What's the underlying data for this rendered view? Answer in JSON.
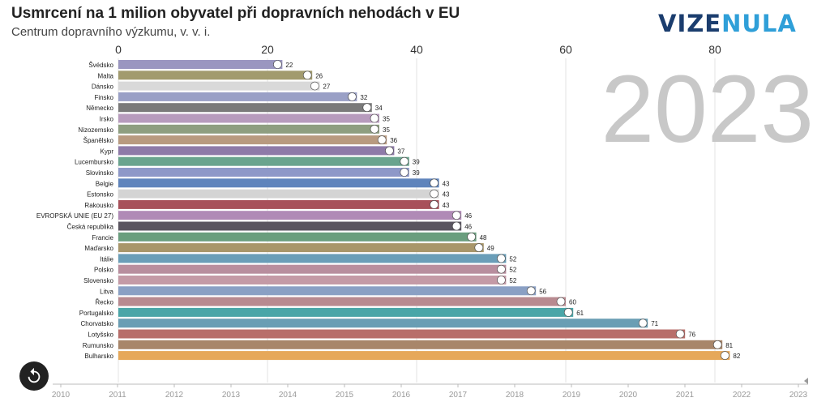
{
  "header": {
    "title": "Usmrcení na 1 milion obyvatel při dopravních nehodách v EU",
    "subtitle": "Centrum dopravního výzkumu, v. v. i.",
    "logo_left": "VIZE",
    "logo_right": "NULA"
  },
  "year_display": "2023",
  "replay_icon": "replay-icon",
  "chart_data": {
    "type": "bar",
    "orientation": "horizontal",
    "xlim": [
      0,
      92
    ],
    "x_ticks": [
      "0",
      "20",
      "40",
      "60",
      "80"
    ],
    "x_tick_values": [
      0,
      20,
      40,
      60,
      80
    ],
    "timeline": {
      "years": [
        "2010",
        "2011",
        "2012",
        "2013",
        "2014",
        "2015",
        "2016",
        "2017",
        "2018",
        "2019",
        "2020",
        "2021",
        "2022",
        "2023"
      ],
      "current": "2023"
    },
    "categories": [
      "Švédsko",
      "Malta",
      "Dánsko",
      "Finsko",
      "Německo",
      "Irsko",
      "Nizozemsko",
      "Španělsko",
      "Kypr",
      "Lucembursko",
      "Slovinsko",
      "Belgie",
      "Estonsko",
      "Rakousko",
      "EVROPSKÁ UNIE (EU 27)",
      "Česká republika",
      "Francie",
      "Maďarsko",
      "Itálie",
      "Polsko",
      "Slovensko",
      "Litva",
      "Řecko",
      "Portugalsko",
      "Chorvatsko",
      "Lotyšsko",
      "Rumunsko",
      "Bulharsko"
    ],
    "values": [
      22,
      26,
      27,
      32,
      34,
      35,
      35,
      36,
      37,
      39,
      39,
      43,
      43,
      43,
      46,
      46,
      48,
      49,
      52,
      52,
      52,
      56,
      60,
      61,
      71,
      76,
      81,
      82
    ],
    "value_labels": [
      "22",
      "26",
      "27",
      "32",
      "34",
      "35",
      "35",
      "36",
      "37",
      "39",
      "39",
      "43",
      "43",
      "43",
      "46",
      "46",
      "48",
      "49",
      "52",
      "52",
      "52",
      "56",
      "60",
      "61",
      "71",
      "76",
      "81",
      "82"
    ],
    "colors": [
      "#9a96c0",
      "#a29b6e",
      "#d9d9d9",
      "#9aa0c6",
      "#7a7a7a",
      "#b79bbd",
      "#8e9e80",
      "#b89a80",
      "#8e7aa8",
      "#6aa48e",
      "#8e98c8",
      "#5f84bc",
      "#d4d4d4",
      "#a8505a",
      "#b08ab6",
      "#5a5560",
      "#6a9e7e",
      "#a8966a",
      "#6a9eb8",
      "#b88e9e",
      "#c49aa6",
      "#8aa0c4",
      "#b88a90",
      "#4aa6a8",
      "#6a9eb4",
      "#b86e6a",
      "#a8866a",
      "#e6a85a"
    ],
    "flag_icons": [
      "sweden-flag-icon",
      "malta-flag-icon",
      "denmark-flag-icon",
      "finland-flag-icon",
      "germany-flag-icon",
      "ireland-flag-icon",
      "netherlands-flag-icon",
      "spain-flag-icon",
      "cyprus-flag-icon",
      "luxembourg-flag-icon",
      "slovenia-flag-icon",
      "belgium-flag-icon",
      "estonia-flag-icon",
      "austria-flag-icon",
      "eu-flag-icon",
      "czech-flag-icon",
      "france-flag-icon",
      "hungary-flag-icon",
      "italy-flag-icon",
      "poland-flag-icon",
      "slovakia-flag-icon",
      "lithuania-flag-icon",
      "greece-flag-icon",
      "portugal-flag-icon",
      "croatia-flag-icon",
      "latvia-flag-icon",
      "romania-flag-icon",
      "bulgaria-flag-icon"
    ],
    "grid": true
  }
}
